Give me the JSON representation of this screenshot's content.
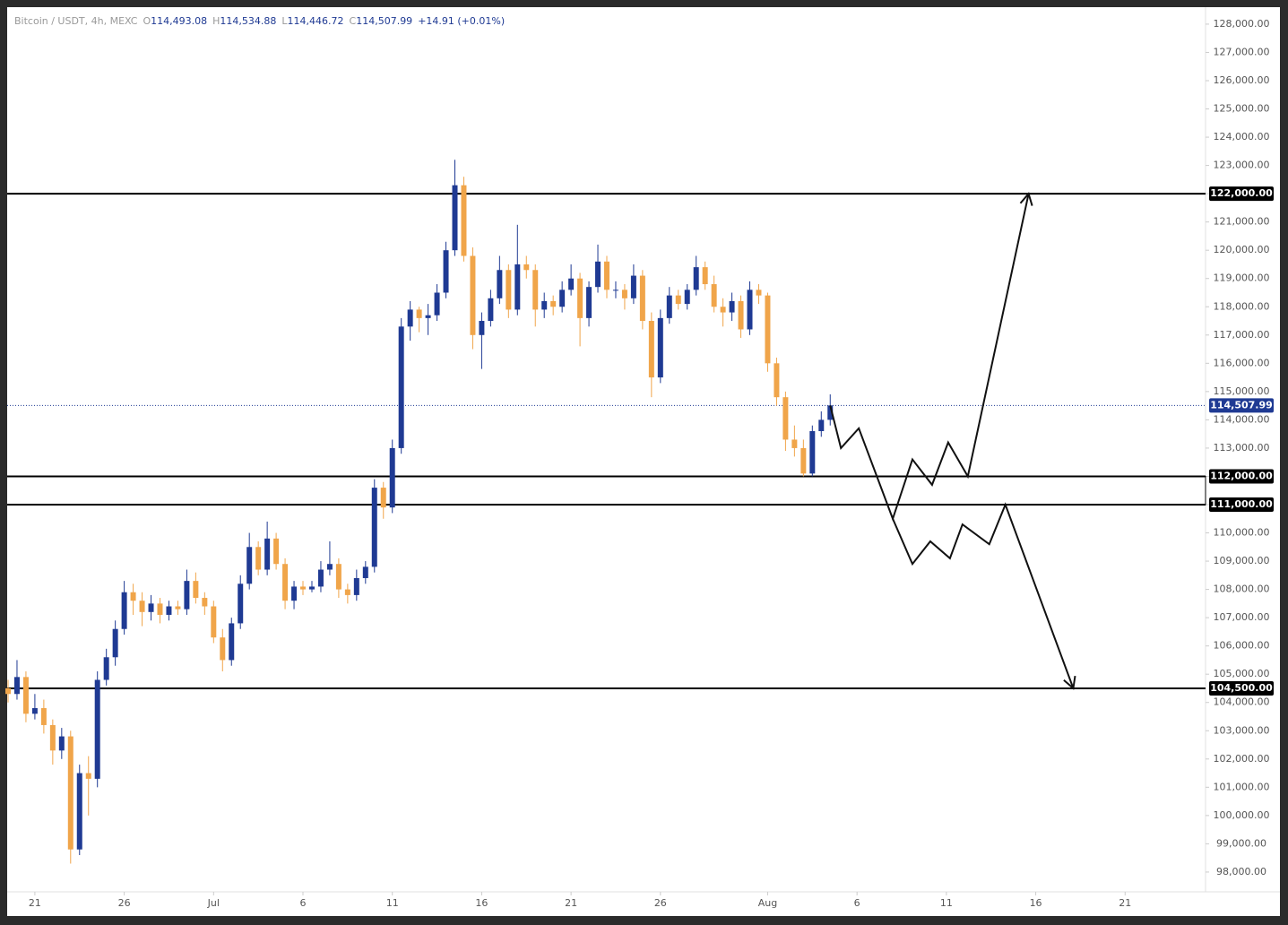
{
  "chart_data": {
    "type": "candlestick",
    "legend_title": "Bitcoin / USDT, 4h, MEXC",
    "ohlc": [
      {
        "label": "O",
        "value": "114,493.08"
      },
      {
        "label": "H",
        "value": "114,534.88"
      },
      {
        "label": "L",
        "value": "114,446.72"
      },
      {
        "label": "C",
        "value": "114,507.99"
      }
    ],
    "change": "+14.91 (+0.01%)",
    "up_color": "#1f3a93",
    "down_color": "#f0a54a",
    "xlim": [
      -1.55,
      65.5
    ],
    "ylim": [
      97300,
      128600
    ],
    "xticks": [
      {
        "value": 0,
        "label": "21"
      },
      {
        "value": 5,
        "label": "26"
      },
      {
        "value": 10,
        "label": "Jul"
      },
      {
        "value": 15,
        "label": "6"
      },
      {
        "value": 20,
        "label": "11"
      },
      {
        "value": 25,
        "label": "16"
      },
      {
        "value": 30,
        "label": "21"
      },
      {
        "value": 35,
        "label": "26"
      },
      {
        "value": 41,
        "label": "Aug"
      },
      {
        "value": 46,
        "label": "6"
      },
      {
        "value": 51,
        "label": "11"
      },
      {
        "value": 56,
        "label": "16"
      },
      {
        "value": 61,
        "label": "21"
      }
    ],
    "yticks": [
      {
        "value": 98000,
        "label": "98,000.00"
      },
      {
        "value": 99000,
        "label": "99,000.00"
      },
      {
        "value": 100000,
        "label": "100,000.00"
      },
      {
        "value": 101000,
        "label": "101,000.00"
      },
      {
        "value": 102000,
        "label": "102,000.00"
      },
      {
        "value": 103000,
        "label": "103,000.00"
      },
      {
        "value": 104000,
        "label": "104,000.00"
      },
      {
        "value": 105000,
        "label": "105,000.00"
      },
      {
        "value": 106000,
        "label": "106,000.00"
      },
      {
        "value": 107000,
        "label": "107,000.00"
      },
      {
        "value": 108000,
        "label": "108,000.00"
      },
      {
        "value": 109000,
        "label": "109,000.00"
      },
      {
        "value": 110000,
        "label": "110,000.00"
      },
      {
        "value": 111000,
        "label": "111,000.00"
      },
      {
        "value": 112000,
        "label": "112,000.00"
      },
      {
        "value": 113000,
        "label": "113,000.00"
      },
      {
        "value": 114000,
        "label": "114,000.00"
      },
      {
        "value": 115000,
        "label": "115,000.00"
      },
      {
        "value": 116000,
        "label": "116,000.00"
      },
      {
        "value": 117000,
        "label": "117,000.00"
      },
      {
        "value": 118000,
        "label": "118,000.00"
      },
      {
        "value": 119000,
        "label": "119,000.00"
      },
      {
        "value": 120000,
        "label": "120,000.00"
      },
      {
        "value": 121000,
        "label": "121,000.00"
      },
      {
        "value": 122000,
        "label": "122,000.00"
      },
      {
        "value": 123000,
        "label": "123,000.00"
      },
      {
        "value": 124000,
        "label": "124,000.00"
      },
      {
        "value": 125000,
        "label": "125,000.00"
      },
      {
        "value": 126000,
        "label": "126,000.00"
      },
      {
        "value": 127000,
        "label": "127,000.00"
      },
      {
        "value": 128000,
        "label": "128,000.00"
      }
    ],
    "levels": [
      {
        "value": 122000,
        "label": "122,000.00"
      },
      {
        "value": 112000,
        "label": "112,000.00"
      },
      {
        "value": 111000,
        "label": "111,000.00"
      },
      {
        "value": 104500,
        "label": "104,500.00"
      }
    ],
    "last_price": {
      "value": 114507.99,
      "label": "114,507.99"
    },
    "x": [
      -1.5,
      -1,
      -0.5,
      0,
      0.5,
      1,
      1.5,
      2,
      2.5,
      3,
      3.5,
      4,
      4.5,
      5,
      5.5,
      6,
      6.5,
      7,
      7.5,
      8,
      8.5,
      9,
      9.5,
      10,
      10.5,
      11,
      11.5,
      12,
      12.5,
      13,
      13.5,
      14,
      14.5,
      15,
      15.5,
      16,
      16.5,
      17,
      17.5,
      18,
      18.5,
      19,
      19.5,
      20,
      20.5,
      21,
      21.5,
      22,
      22.5,
      23,
      23.5,
      24,
      24.5,
      25,
      25.5,
      26,
      26.5,
      27,
      27.5,
      28,
      28.5,
      29,
      29.5,
      30,
      30.5,
      31,
      31.5,
      32,
      32.5,
      33,
      33.5,
      34,
      34.5,
      35,
      35.5,
      36,
      36.5,
      37,
      37.5,
      38,
      38.5,
      39,
      39.5,
      40,
      40.5,
      41,
      41.5,
      42,
      42.5,
      43,
      43.5,
      44,
      44.5
    ],
    "candles": [
      [
        104500,
        104800,
        104000,
        104300
      ],
      [
        104300,
        105500,
        104100,
        104900
      ],
      [
        104900,
        105100,
        103300,
        103600
      ],
      [
        103600,
        104300,
        103400,
        103800
      ],
      [
        103800,
        104100,
        102900,
        103200
      ],
      [
        103200,
        103400,
        101800,
        102300
      ],
      [
        102300,
        103100,
        102000,
        102800
      ],
      [
        102800,
        103000,
        98300,
        98800
      ],
      [
        98800,
        101800,
        98600,
        101500
      ],
      [
        101500,
        102100,
        100000,
        101300
      ],
      [
        101300,
        105100,
        101000,
        104800
      ],
      [
        104800,
        105900,
        104600,
        105600
      ],
      [
        105600,
        106900,
        105300,
        106600
      ],
      [
        106600,
        108300,
        106400,
        107900
      ],
      [
        107900,
        108200,
        107100,
        107600
      ],
      [
        107600,
        107900,
        106700,
        107200
      ],
      [
        107200,
        107800,
        106900,
        107500
      ],
      [
        107500,
        107700,
        106800,
        107100
      ],
      [
        107100,
        107600,
        106900,
        107400
      ],
      [
        107400,
        107600,
        107100,
        107300
      ],
      [
        107300,
        108700,
        107100,
        108300
      ],
      [
        108300,
        108600,
        107500,
        107700
      ],
      [
        107700,
        107900,
        107100,
        107400
      ],
      [
        107400,
        107600,
        106100,
        106300
      ],
      [
        106300,
        106600,
        105100,
        105500
      ],
      [
        105500,
        107000,
        105300,
        106800
      ],
      [
        106800,
        108500,
        106600,
        108200
      ],
      [
        108200,
        110000,
        108000,
        109500
      ],
      [
        109500,
        109700,
        108500,
        108700
      ],
      [
        108700,
        110400,
        108500,
        109800
      ],
      [
        109800,
        110000,
        108700,
        108900
      ],
      [
        108900,
        109100,
        107300,
        107600
      ],
      [
        107600,
        108300,
        107300,
        108100
      ],
      [
        108100,
        108300,
        107800,
        108000
      ],
      [
        108000,
        108300,
        107900,
        108100
      ],
      [
        108100,
        109000,
        107900,
        108700
      ],
      [
        108700,
        109700,
        108500,
        108900
      ],
      [
        108900,
        109100,
        107700,
        108000
      ],
      [
        108000,
        108200,
        107500,
        107800
      ],
      [
        107800,
        108700,
        107600,
        108400
      ],
      [
        108400,
        109000,
        108200,
        108800
      ],
      [
        108800,
        111900,
        108600,
        111600
      ],
      [
        111600,
        111800,
        110500,
        110900
      ],
      [
        110900,
        113300,
        110700,
        113000
      ],
      [
        113000,
        117600,
        112800,
        117300
      ],
      [
        117300,
        118200,
        116800,
        117900
      ],
      [
        117900,
        118000,
        117100,
        117600
      ],
      [
        117600,
        118100,
        117000,
        117700
      ],
      [
        117700,
        118800,
        117500,
        118500
      ],
      [
        118500,
        120300,
        118300,
        120000
      ],
      [
        120000,
        123200,
        119800,
        122300
      ],
      [
        122300,
        122600,
        119600,
        119800
      ],
      [
        119800,
        120100,
        116500,
        117000
      ],
      [
        117000,
        117800,
        115800,
        117500
      ],
      [
        117500,
        118600,
        117300,
        118300
      ],
      [
        118300,
        119800,
        118100,
        119300
      ],
      [
        119300,
        119500,
        117600,
        117900
      ],
      [
        117900,
        120900,
        117700,
        119500
      ],
      [
        119500,
        119800,
        119000,
        119300
      ],
      [
        119300,
        119500,
        117300,
        117900
      ],
      [
        117900,
        118500,
        117600,
        118200
      ],
      [
        118200,
        118400,
        117700,
        118000
      ],
      [
        118000,
        118900,
        117800,
        118600
      ],
      [
        118600,
        119500,
        118400,
        119000
      ],
      [
        119000,
        119200,
        116600,
        117600
      ],
      [
        117600,
        118900,
        117300,
        118700
      ],
      [
        118700,
        120200,
        118500,
        119600
      ],
      [
        119600,
        119800,
        118300,
        118600
      ],
      [
        118600,
        118900,
        118300,
        118600
      ],
      [
        118600,
        118800,
        117900,
        118300
      ],
      [
        118300,
        119500,
        118100,
        119100
      ],
      [
        119100,
        119300,
        117200,
        117500
      ],
      [
        117500,
        117800,
        114800,
        115500
      ],
      [
        115500,
        117900,
        115300,
        117600
      ],
      [
        117600,
        118700,
        117400,
        118400
      ],
      [
        118400,
        118600,
        117900,
        118100
      ],
      [
        118100,
        118800,
        117900,
        118600
      ],
      [
        118600,
        119800,
        118400,
        119400
      ],
      [
        119400,
        119600,
        118600,
        118800
      ],
      [
        118800,
        119100,
        117800,
        118000
      ],
      [
        118000,
        118300,
        117300,
        117800
      ],
      [
        117800,
        118500,
        117500,
        118200
      ],
      [
        118200,
        118400,
        116900,
        117200
      ],
      [
        117200,
        118900,
        117000,
        118600
      ],
      [
        118600,
        118800,
        118100,
        118400
      ],
      [
        118400,
        118500,
        115700,
        116000
      ],
      [
        116000,
        116200,
        114500,
        114800
      ],
      [
        114800,
        115000,
        112900,
        113300
      ],
      [
        113300,
        113800,
        112700,
        113000
      ],
      [
        113000,
        113300,
        112000,
        112100
      ],
      [
        112100,
        113800,
        112000,
        113600
      ],
      [
        113600,
        114300,
        113400,
        114000
      ],
      [
        114000,
        114900,
        113800,
        114507.99
      ]
    ],
    "drawings": [
      {
        "x": [
          44.5,
          45.1,
          46.1,
          48,
          49.1,
          50.2,
          51.1,
          52.2,
          55.6
        ],
        "y": [
          114508,
          113000,
          113700,
          110500,
          112600,
          111700,
          113200,
          112000,
          122000
        ]
      },
      {
        "x": [
          48,
          49.1,
          50.1,
          51.2,
          51.9,
          53.4,
          54.3,
          58.1
        ],
        "y": [
          110500,
          108900,
          109700,
          109100,
          110300,
          109600,
          111000,
          104500
        ]
      }
    ]
  }
}
